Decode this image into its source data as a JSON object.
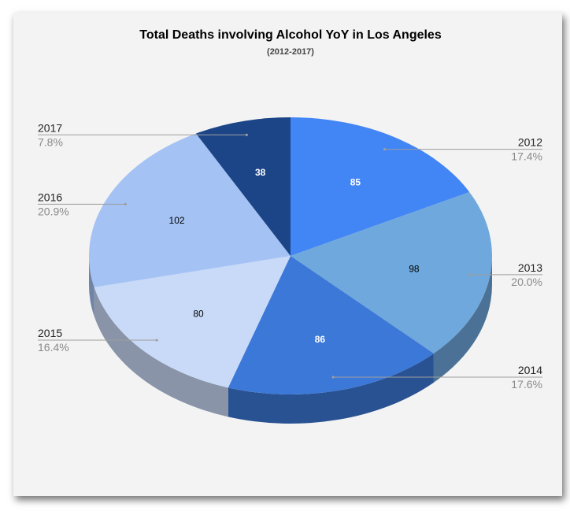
{
  "chart_data": {
    "type": "pie",
    "title": "Total Deaths involving Alcohol YoY in Los Angeles",
    "subtitle": "(2012-2017)",
    "categories": [
      "2012",
      "2013",
      "2014",
      "2015",
      "2016",
      "2017"
    ],
    "values": [
      85,
      98,
      86,
      80,
      102,
      38
    ],
    "percentages": [
      "17.4%",
      "20.0%",
      "17.6%",
      "16.4%",
      "20.9%",
      "7.8%"
    ],
    "colors": [
      "#4285f4",
      "#6fa8dc",
      "#3c78d8",
      "#c9daf8",
      "#a4c2f4",
      "#1c4587"
    ],
    "label_colors": [
      "#ffffff",
      "#000000",
      "#ffffff",
      "#000000",
      "#000000",
      "#ffffff"
    ],
    "legend_placement": "labeled slices"
  }
}
